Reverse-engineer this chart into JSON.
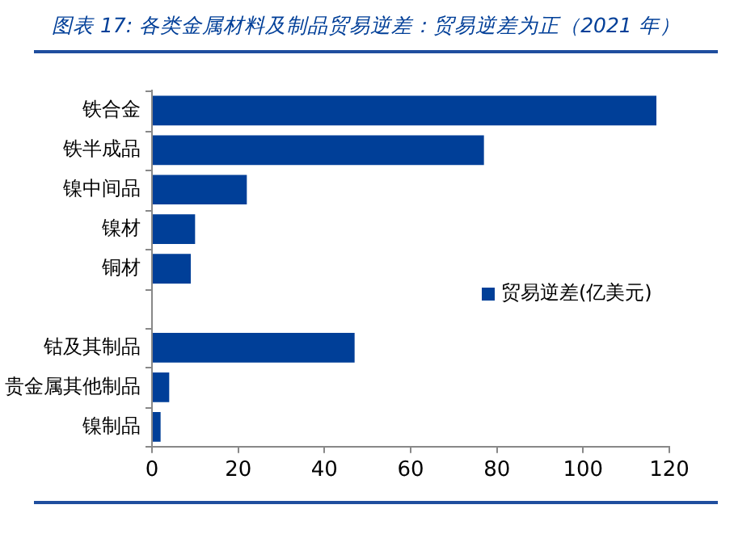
{
  "chart_data": {
    "type": "bar",
    "orientation": "horizontal",
    "title": "图表 17: 各类金属材料及制品贸易逆差：贸易逆差为正（2021 年）",
    "categories": [
      "铁合金",
      "铁半成品",
      "镍中间品",
      "镍材",
      "铜材",
      null,
      "钴及其制品",
      "贵金属其他制品",
      "镍制品"
    ],
    "series": [
      {
        "name": "贸易逆差(亿美元)",
        "color": "#003f98",
        "values": [
          117,
          77,
          22,
          10,
          9,
          null,
          47,
          4,
          2
        ]
      }
    ],
    "xlim": [
      0,
      120
    ],
    "xticks": [
      0,
      20,
      40,
      60,
      80,
      100,
      120
    ],
    "grid": false,
    "legend": "right"
  }
}
